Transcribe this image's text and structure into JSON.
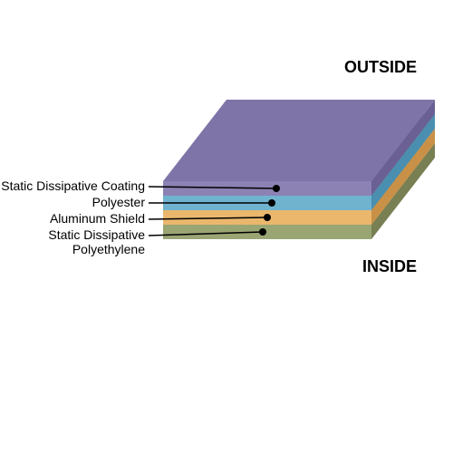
{
  "diagram": {
    "type": "infographic",
    "background_color": "#ffffff",
    "outside_label": "OUTSIDE",
    "inside_label": "INSIDE",
    "outside_fontsize": 18,
    "inside_fontsize": 18,
    "label_fontsize": 14,
    "layers": [
      {
        "label": "Static Dissipative Coating",
        "top_color": "#7f74a8",
        "side_color": "#6a6094",
        "front_color": "#8c82b4"
      },
      {
        "label": "Polyester",
        "top_color": "#5ea7c4",
        "side_color": "#4a8faf",
        "front_color": "#70b3cf"
      },
      {
        "label": "Aluminum Shield",
        "top_color": "#e0a758",
        "side_color": "#c99147",
        "front_color": "#eab76d"
      },
      {
        "label": "Static Dissipative Polyethylene",
        "label2": "Polyethylene",
        "top_color": "#8e9866",
        "side_color": "#787f53",
        "front_color": "#9aa574"
      }
    ],
    "layer_thickness": 16,
    "dot_color": "#000000",
    "line_color": "#000000",
    "line_width": 1.5
  }
}
